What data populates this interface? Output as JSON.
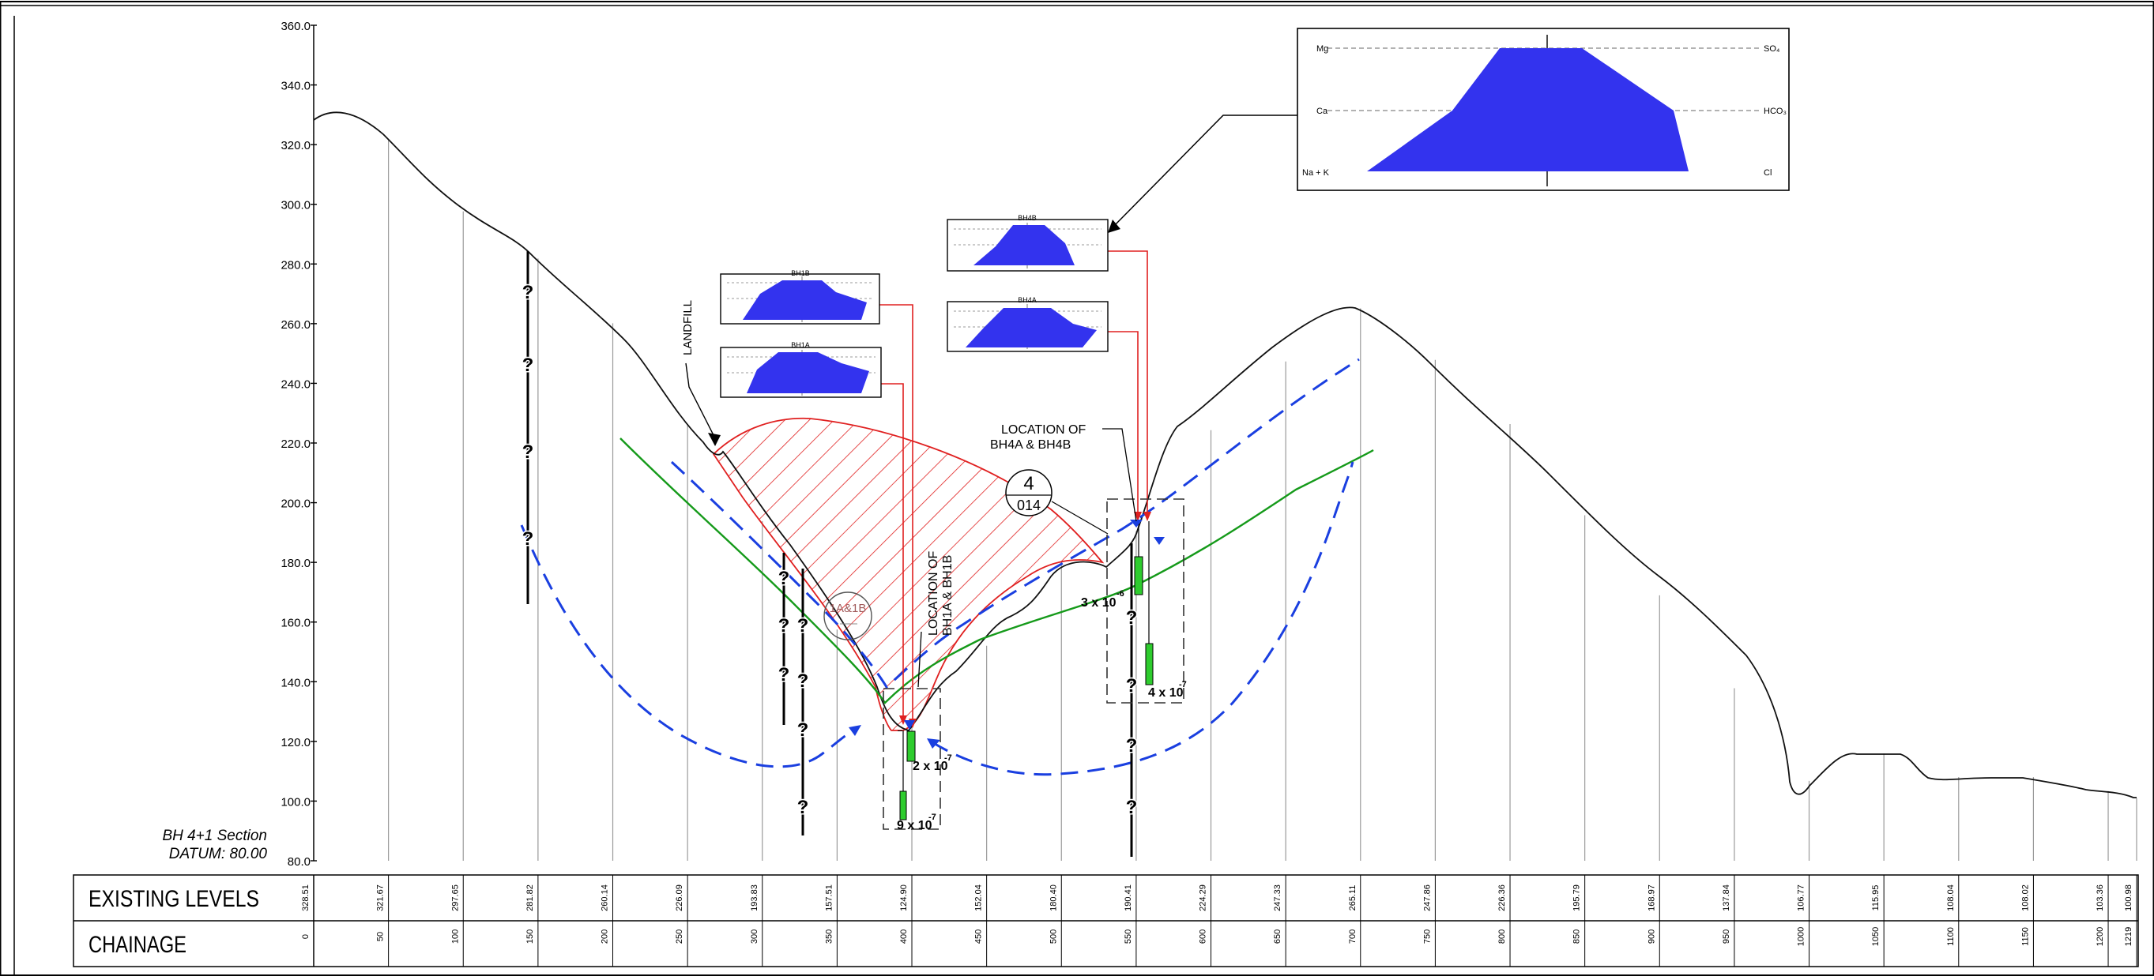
{
  "section": {
    "title": "BH 4+1 Section",
    "datum": "DATUM: 80.00"
  },
  "table": {
    "row1_label": "EXISTING LEVELS",
    "row2_label": "CHAINAGE",
    "levels": [
      "328.51",
      "321.67",
      "297.65",
      "281.82",
      "260.14",
      "226.09",
      "193.83",
      "157.51",
      "124.90",
      "152.04",
      "180.40",
      "190.41",
      "224.29",
      "247.33",
      "265.11",
      "247.86",
      "226.36",
      "195.79",
      "168.97",
      "137.84",
      "106.77",
      "115.95",
      "108.04",
      "108.02",
      "103.36",
      "100.98"
    ],
    "chainages": [
      "0",
      "50",
      "100",
      "150",
      "200",
      "250",
      "300",
      "350",
      "400",
      "450",
      "500",
      "550",
      "600",
      "650",
      "700",
      "750",
      "800",
      "850",
      "900",
      "950",
      "1000",
      "1050",
      "1100",
      "1150",
      "1200",
      "1219"
    ]
  },
  "y_axis": {
    "ticks": [
      "360.0",
      "340.0",
      "320.0",
      "300.0",
      "280.0",
      "260.0",
      "240.0",
      "220.0",
      "200.0",
      "180.0",
      "160.0",
      "140.0",
      "120.0",
      "100.0",
      "80.0"
    ]
  },
  "labels": {
    "landfill": "LANDFILL",
    "loc_bh1_line1": "LOCATION OF",
    "loc_bh1_line2": "BH1A & BH1B",
    "loc_bh4_line1": "LOCATION  OF",
    "loc_bh4_line2": "BH4A  &  BH4B",
    "callout_top": "4",
    "callout_bottom": "014",
    "callout_small": "1A&1B",
    "question": "?"
  },
  "permeability": {
    "p1_base": "3 x 10",
    "p1_exp": "-6",
    "p2_base": "4 x 10",
    "p2_exp": "-7",
    "p3_base": "2 x 10",
    "p3_exp": "-7",
    "p4_base": "9 x 10",
    "p4_exp": "-7"
  },
  "stiff": {
    "big": {
      "left_top": "Mg",
      "left_mid": "Ca",
      "left_bot": "Na + K",
      "right_top": "SO₄",
      "right_mid": "HCO₃",
      "right_bot": "Cl"
    },
    "bh1b": "BH1B",
    "bh1a": "BH1A",
    "bh4b": "BH4B",
    "bh4a": "BH4A"
  },
  "colors": {
    "fill_blue": "#3333ee",
    "water_blue": "#1a3fe0",
    "green": "#159a1a",
    "red": "#e02020",
    "ground": "#111111"
  }
}
